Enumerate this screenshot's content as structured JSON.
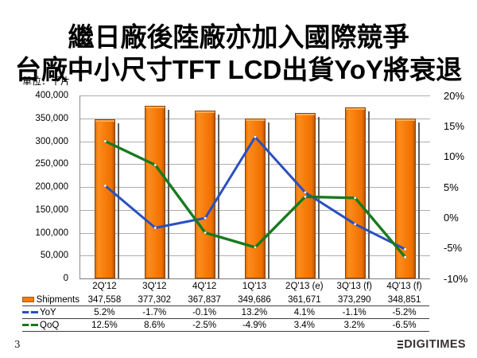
{
  "title": {
    "line1": "繼日廠後陸廠亦加入國際競爭",
    "line2": "台廠中小尺寸TFT LCD出貨YoY將衰退"
  },
  "unit_label": "單位：千片",
  "page_number": "3",
  "logo_text": "DIGITIMES",
  "chart_data": {
    "type": "bar",
    "subtype": "combo-bar-line-with-data-table",
    "title": "台廠中小尺寸TFT LCD出貨 (單位：千片)",
    "categories": [
      "2Q'12",
      "3Q'12",
      "4Q'12",
      "1Q'13",
      "2Q'13 (e)",
      "3Q'13 (f)",
      "4Q'13 (f)"
    ],
    "series": [
      {
        "name": "Shipments",
        "type": "bar",
        "axis": "left",
        "color": "#f57d0d",
        "values": [
          347558,
          377302,
          367837,
          349686,
          361671,
          373290,
          348851
        ],
        "table_values": [
          "347,558",
          "377,302",
          "367,837",
          "349,686",
          "361,671",
          "373,290",
          "348,851"
        ]
      },
      {
        "name": "YoY",
        "type": "line",
        "axis": "right",
        "color": "#2950c0",
        "values": [
          5.2,
          -1.7,
          -0.1,
          13.2,
          4.1,
          -1.1,
          -5.2
        ],
        "table_values": [
          "5.2%",
          "-1.7%",
          "-0.1%",
          "13.2%",
          "4.1%",
          "-1.1%",
          "-5.2%"
        ]
      },
      {
        "name": "QoQ",
        "type": "line",
        "axis": "right",
        "color": "#177a1d",
        "values": [
          12.5,
          8.6,
          -2.5,
          -4.9,
          3.4,
          3.2,
          -6.5
        ],
        "table_values": [
          "12.5%",
          "8.6%",
          "-2.5%",
          "-4.9%",
          "3.4%",
          "3.2%",
          "-6.5%"
        ]
      }
    ],
    "left_axis": {
      "min": 0,
      "max": 400000,
      "step": 50000,
      "tick_labels": [
        "400,000",
        "350,000",
        "300,000",
        "250,000",
        "200,000",
        "150,000",
        "100,000",
        "50,000",
        "0"
      ]
    },
    "right_axis": {
      "min": -10,
      "max": 20,
      "step": 5,
      "tick_labels": [
        "20%",
        "15%",
        "10%",
        "5%",
        "0%",
        "-5%",
        "-10%"
      ]
    },
    "grid": true,
    "legend_position": "table-left"
  }
}
